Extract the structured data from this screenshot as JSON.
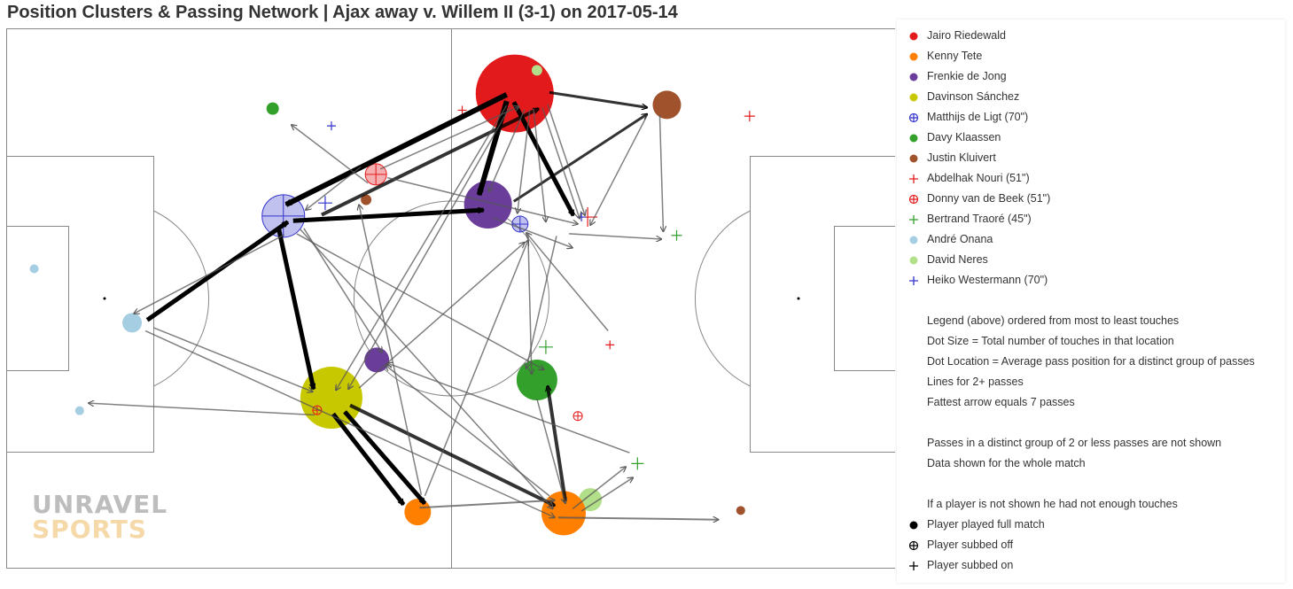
{
  "title": "Position Clusters & Passing Network | Ajax away v. Willem II (3-1) on 2017-05-14",
  "logo": {
    "line1": "UNRAVEL",
    "line2": "SPORTS"
  },
  "chart_data": {
    "type": "network",
    "pitch": {
      "x_range": [
        0,
        100
      ],
      "y_range": [
        0,
        100
      ]
    },
    "players": [
      {
        "name": "Jairo Riedewald",
        "color": "#e31a1c",
        "status": "full"
      },
      {
        "name": "Kenny Tete",
        "color": "#ff7f00",
        "status": "full"
      },
      {
        "name": "Frenkie de Jong",
        "color": "#6a3d9a",
        "status": "full"
      },
      {
        "name": "Davinson Sánchez",
        "color": "#c8c800",
        "status": "full"
      },
      {
        "name": "Matthijs de Ligt (70\")",
        "color": "#3333cc",
        "status": "off"
      },
      {
        "name": "Davy Klaassen",
        "color": "#33a02c",
        "status": "full"
      },
      {
        "name": "Justin Kluivert",
        "color": "#a0522d",
        "status": "full"
      },
      {
        "name": "Abdelhak Nouri (51\")",
        "color": "#e31a1c",
        "status": "on"
      },
      {
        "name": "Donny van de Beek (51\")",
        "color": "#e31a1c",
        "status": "off"
      },
      {
        "name": "Bertrand Traoré (45\")",
        "color": "#33a02c",
        "status": "on"
      },
      {
        "name": "André Onana",
        "color": "#a6cee3",
        "status": "full"
      },
      {
        "name": "David Neres",
        "color": "#b2df8a",
        "status": "full"
      },
      {
        "name": "Heiko Westermann (70\")",
        "color": "#3333cc",
        "status": "on"
      }
    ],
    "clusters": [
      {
        "player": 0,
        "type": "dot",
        "x": 57.1,
        "y": 12.0,
        "r": 44,
        "alpha": 1
      },
      {
        "player": 11,
        "type": "dot",
        "x": 59.6,
        "y": 7.7,
        "r": 6,
        "alpha": 1
      },
      {
        "player": 6,
        "type": "dot",
        "x": 74.2,
        "y": 14.1,
        "r": 16,
        "alpha": 1
      },
      {
        "player": 7,
        "type": "plus",
        "x": 83.5,
        "y": 16.2,
        "r": 6
      },
      {
        "player": 7,
        "type": "plus",
        "x": 51.2,
        "y": 15.1,
        "r": 5
      },
      {
        "player": 5,
        "type": "dot",
        "x": 29.9,
        "y": 14.8,
        "r": 7,
        "alpha": 1
      },
      {
        "player": 12,
        "type": "plus",
        "x": 36.5,
        "y": 18.0,
        "r": 5
      },
      {
        "player": 8,
        "type": "ring",
        "x": 41.5,
        "y": 27.0,
        "r": 12,
        "alpha": 0.35
      },
      {
        "player": 6,
        "type": "dot",
        "x": 40.4,
        "y": 31.7,
        "r": 6,
        "alpha": 1
      },
      {
        "player": 4,
        "type": "ring",
        "x": 31.1,
        "y": 34.7,
        "r": 24,
        "alpha": 0.3
      },
      {
        "player": 12,
        "type": "plus",
        "x": 35.8,
        "y": 32.3,
        "r": 8
      },
      {
        "player": 2,
        "type": "dot",
        "x": 54.1,
        "y": 32.6,
        "r": 27,
        "alpha": 1
      },
      {
        "player": 4,
        "type": "ring",
        "x": 57.7,
        "y": 36.2,
        "r": 9,
        "alpha": 0.3
      },
      {
        "player": 7,
        "type": "plus",
        "x": 65.3,
        "y": 34.9,
        "r": 11
      },
      {
        "player": 12,
        "type": "plus",
        "x": 64.6,
        "y": 34.9,
        "r": 5
      },
      {
        "player": 9,
        "type": "plus",
        "x": 75.3,
        "y": 38.3,
        "r": 6
      },
      {
        "player": 10,
        "type": "dot",
        "x": 3.1,
        "y": 44.5,
        "r": 5,
        "alpha": 1
      },
      {
        "player": 10,
        "type": "dot",
        "x": 14.1,
        "y": 54.5,
        "r": 11,
        "alpha": 1
      },
      {
        "player": 7,
        "type": "plus",
        "x": 67.8,
        "y": 58.6,
        "r": 5
      },
      {
        "player": 9,
        "type": "plus",
        "x": 60.6,
        "y": 59.0,
        "r": 8
      },
      {
        "player": 2,
        "type": "dot",
        "x": 41.6,
        "y": 61.4,
        "r": 14,
        "alpha": 1
      },
      {
        "player": 5,
        "type": "dot",
        "x": 59.6,
        "y": 65.1,
        "r": 23,
        "alpha": 1
      },
      {
        "player": 1,
        "type": "dot",
        "x": 35.3,
        "y": 72.0,
        "r": 10,
        "alpha": 1
      },
      {
        "player": 3,
        "type": "dot",
        "x": 36.5,
        "y": 68.4,
        "r": 35,
        "alpha": 1
      },
      {
        "player": 8,
        "type": "ring",
        "x": 34.9,
        "y": 70.7,
        "r": 5,
        "alpha": 0
      },
      {
        "player": 8,
        "type": "ring",
        "x": 64.2,
        "y": 71.8,
        "r": 5,
        "alpha": 0
      },
      {
        "player": 10,
        "type": "dot",
        "x": 8.2,
        "y": 70.8,
        "r": 5,
        "alpha": 1
      },
      {
        "player": 9,
        "type": "plus",
        "x": 70.9,
        "y": 80.6,
        "r": 7
      },
      {
        "player": 11,
        "type": "dot",
        "x": 65.6,
        "y": 87.3,
        "r": 13,
        "alpha": 1
      },
      {
        "player": 1,
        "type": "dot",
        "x": 46.2,
        "y": 89.6,
        "r": 15,
        "alpha": 1
      },
      {
        "player": 1,
        "type": "dot",
        "x": 62.6,
        "y": 89.8,
        "r": 25,
        "alpha": 1
      },
      {
        "player": 6,
        "type": "dot",
        "x": 82.5,
        "y": 89.3,
        "r": 5,
        "alpha": 1
      }
    ],
    "passes": [
      {
        "from": [
          56.2,
          12.2
        ],
        "to": [
          31.4,
          32.6
        ],
        "w": 6
      },
      {
        "from": [
          56.2,
          13.4
        ],
        "to": [
          53.1,
          30.8
        ],
        "w": 6
      },
      {
        "from": [
          57.0,
          13.6
        ],
        "to": [
          63.7,
          34.6
        ],
        "w": 5
      },
      {
        "from": [
          32.2,
          35.6
        ],
        "to": [
          53.6,
          33.6
        ],
        "w": 5
      },
      {
        "from": [
          15.8,
          54.0
        ],
        "to": [
          31.6,
          35.8
        ],
        "w": 5
      },
      {
        "from": [
          30.6,
          37.2
        ],
        "to": [
          34.5,
          66.8
        ],
        "w": 5
      },
      {
        "from": [
          36.7,
          71.4
        ],
        "to": [
          44.6,
          88.2
        ],
        "w": 5
      },
      {
        "from": [
          38.0,
          71.0
        ],
        "to": [
          47.0,
          88.0
        ],
        "w": 5
      },
      {
        "from": [
          38.6,
          69.8
        ],
        "to": [
          61.6,
          88.4
        ],
        "w": 4
      },
      {
        "from": [
          62.8,
          87.6
        ],
        "to": [
          60.8,
          66.2
        ],
        "w": 4
      },
      {
        "from": [
          35.4,
          34.5
        ],
        "to": [
          59.8,
          14.8
        ],
        "w": 4
      },
      {
        "from": [
          57.0,
          32.0
        ],
        "to": [
          72.0,
          15.8
        ],
        "w": 3
      },
      {
        "from": [
          61.0,
          11.8
        ],
        "to": [
          72.0,
          14.6
        ],
        "w": 3
      },
      {
        "from": [
          46.4,
          88.8
        ],
        "to": [
          61.6,
          87.4
        ],
        "w": 2
      },
      {
        "from": [
          62.0,
          90.6
        ],
        "to": [
          80.0,
          91.0
        ],
        "w": 2
      },
      {
        "from": [
          31.2,
          38.2
        ],
        "to": [
          14.3,
          52.8
        ],
        "w": 1.5
      },
      {
        "from": [
          16.5,
          55.4
        ],
        "to": [
          34.4,
          67.3
        ],
        "w": 1.5
      },
      {
        "from": [
          15.6,
          56.0
        ],
        "to": [
          61.6,
          90.6
        ],
        "w": 1.5
      },
      {
        "from": [
          34.6,
          71.6
        ],
        "to": [
          9.2,
          69.4
        ],
        "w": 1.5
      },
      {
        "from": [
          56.2,
          14.2
        ],
        "to": [
          37.0,
          67.0
        ],
        "w": 1.5
      },
      {
        "from": [
          56.6,
          14.4
        ],
        "to": [
          38.4,
          66.8
        ],
        "w": 1.5
      },
      {
        "from": [
          58.2,
          15.0
        ],
        "to": [
          54.2,
          30.2
        ],
        "w": 1.5
      },
      {
        "from": [
          58.8,
          15.0
        ],
        "to": [
          57.4,
          34.2
        ],
        "w": 1.5
      },
      {
        "from": [
          59.2,
          14.8
        ],
        "to": [
          60.6,
          35.8
        ],
        "w": 1.5
      },
      {
        "from": [
          60.2,
          14.6
        ],
        "to": [
          64.4,
          35.2
        ],
        "w": 1.5
      },
      {
        "from": [
          60.8,
          14.0
        ],
        "to": [
          65.0,
          34.6
        ],
        "w": 1.5
      },
      {
        "from": [
          39.8,
          25.6
        ],
        "to": [
          33.6,
          33.6
        ],
        "w": 1.5
      },
      {
        "from": [
          40.6,
          28.6
        ],
        "to": [
          32.0,
          17.8
        ],
        "w": 1.5
      },
      {
        "from": [
          42.0,
          26.0
        ],
        "to": [
          57.6,
          14.4
        ],
        "w": 1.5
      },
      {
        "from": [
          42.8,
          27.6
        ],
        "to": [
          64.2,
          36.2
        ],
        "w": 1.5
      },
      {
        "from": [
          33.4,
          37.0
        ],
        "to": [
          42.2,
          60.0
        ],
        "w": 1.5
      },
      {
        "from": [
          32.6,
          38.0
        ],
        "to": [
          60.4,
          63.2
        ],
        "w": 1.5
      },
      {
        "from": [
          33.0,
          37.2
        ],
        "to": [
          61.4,
          89.0
        ],
        "w": 1.5
      },
      {
        "from": [
          54.6,
          35.0
        ],
        "to": [
          63.6,
          40.6
        ],
        "w": 1.5
      },
      {
        "from": [
          63.2,
          38.0
        ],
        "to": [
          73.6,
          39.0
        ],
        "w": 1.5
      },
      {
        "from": [
          67.6,
          56.0
        ],
        "to": [
          58.4,
          37.8
        ],
        "w": 1.5
      },
      {
        "from": [
          58.6,
          38.0
        ],
        "to": [
          59.0,
          64.0
        ],
        "w": 1.5
      },
      {
        "from": [
          61.8,
          38.4
        ],
        "to": [
          58.4,
          63.0
        ],
        "w": 1.5
      },
      {
        "from": [
          73.4,
          16.0
        ],
        "to": [
          73.8,
          37.6
        ],
        "w": 1.5
      },
      {
        "from": [
          72.0,
          16.0
        ],
        "to": [
          65.6,
          36.4
        ],
        "w": 1.5
      },
      {
        "from": [
          39.6,
          66.6
        ],
        "to": [
          58.2,
          39.6
        ],
        "w": 1.5
      },
      {
        "from": [
          46.6,
          86.4
        ],
        "to": [
          39.6,
          32.6
        ],
        "w": 1.5
      },
      {
        "from": [
          47.0,
          86.6
        ],
        "to": [
          58.6,
          39.2
        ],
        "w": 1.5
      },
      {
        "from": [
          61.0,
          86.6
        ],
        "to": [
          42.6,
          62.4
        ],
        "w": 1.5
      },
      {
        "from": [
          70.0,
          78.6
        ],
        "to": [
          42.8,
          62.0
        ],
        "w": 1.5
      },
      {
        "from": [
          59.6,
          68.6
        ],
        "to": [
          62.8,
          88.0
        ],
        "w": 1.5
      },
      {
        "from": [
          64.6,
          89.4
        ],
        "to": [
          70.4,
          83.2
        ],
        "w": 1.5
      },
      {
        "from": [
          63.6,
          89.0
        ],
        "to": [
          69.6,
          81.2
        ],
        "w": 1.5
      }
    ]
  },
  "legend": {
    "items": [
      "Jairo Riedewald",
      "Kenny Tete",
      "Frenkie de Jong",
      "Davinson Sánchez",
      "Matthijs de Ligt (70\")",
      "Davy Klaassen",
      "Justin Kluivert",
      "Abdelhak Nouri (51\")",
      "Donny van de Beek (51\")",
      "Bertrand Traoré (45\")",
      "André Onana",
      "David Neres",
      "Heiko Westermann (70\")"
    ],
    "notes_a": [
      "Legend (above) ordered from most to least touches",
      "Dot Size = Total number of touches in that location",
      "Dot Location = Average pass position for a distinct group of passes",
      "Lines for 2+ passes",
      "Fattest arrow equals 7 passes"
    ],
    "notes_b": [
      "Passes in a distinct group of 2 or less passes are not shown",
      "Data shown for the whole match"
    ],
    "note_c": "If a player is not shown he had not enough touches",
    "key": [
      {
        "symbol": "dot",
        "label": "Player played full match"
      },
      {
        "symbol": "ring",
        "label": "Player subbed off"
      },
      {
        "symbol": "plus",
        "label": "Player subbed on"
      }
    ]
  }
}
